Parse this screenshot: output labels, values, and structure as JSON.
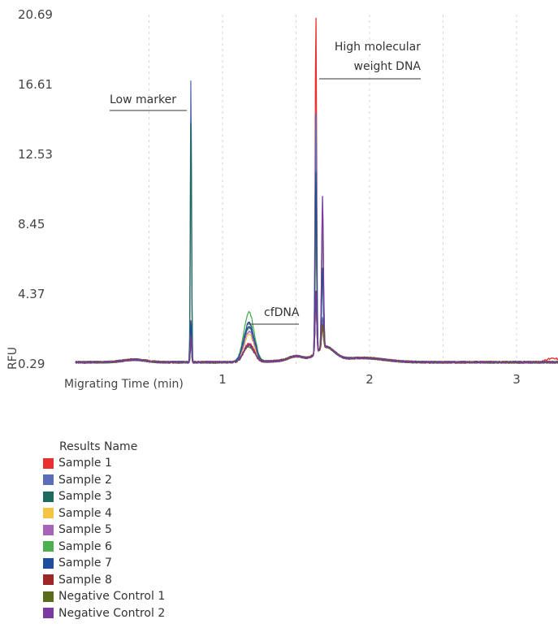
{
  "chart_data": {
    "type": "line",
    "title": "",
    "xlabel": "Migrating Time (min)",
    "ylabel": "RFU",
    "yticks": [
      "0.29",
      "4.37",
      "8.45",
      "12.53",
      "16.61",
      "20.69"
    ],
    "ylim": [
      0.29,
      20.69
    ],
    "xticks": [
      "1",
      "2",
      "3"
    ],
    "xlim": [
      0,
      3.3
    ],
    "grid": "vertical dashed",
    "annotations": {
      "low_marker": "Low marker",
      "cfdna": "cfDNA",
      "hmw_line1": "High molecular",
      "hmw_line2": "weight DNA"
    },
    "legend": {
      "title": "Results Name",
      "placement": "bottom-left"
    },
    "series": [
      {
        "name": "Sample 1",
        "color": "#e8312f",
        "low_peak": 2.9,
        "cf_peak": 1.5,
        "hmw_peak": 20.3,
        "hmw2": 1.6,
        "seed": 1
      },
      {
        "name": "Sample 2",
        "color": "#5b6db8",
        "low_peak": 17.4,
        "cf_peak": 2.4,
        "hmw_peak": 14.6,
        "hmw2": 2.2,
        "seed": 2
      },
      {
        "name": "Sample 3",
        "color": "#1d6b5e",
        "low_peak": 14.8,
        "cf_peak": 2.5,
        "hmw_peak": 10.5,
        "hmw2": 4.9,
        "seed": 3
      },
      {
        "name": "Sample 4",
        "color": "#f4c542",
        "low_peak": 2.6,
        "cf_peak": 2.0,
        "hmw_peak": 8.1,
        "hmw2": 8.3,
        "seed": 4
      },
      {
        "name": "Sample 5",
        "color": "#a763b8",
        "low_peak": 2.8,
        "cf_peak": 2.2,
        "hmw_peak": 9.6,
        "hmw2": 7.5,
        "seed": 5
      },
      {
        "name": "Sample 6",
        "color": "#4db050",
        "low_peak": 2.2,
        "cf_peak": 3.3,
        "hmw_peak": 9.8,
        "hmw2": 8.4,
        "seed": 6
      },
      {
        "name": "Sample 7",
        "color": "#1c4e9c",
        "low_peak": 2.9,
        "cf_peak": 2.7,
        "hmw_peak": 11.2,
        "hmw2": 5.0,
        "seed": 7
      },
      {
        "name": "Sample 8",
        "color": "#9e2626",
        "low_peak": 2.0,
        "cf_peak": 1.4,
        "hmw_peak": 4.1,
        "hmw2": 1.8,
        "seed": 8
      },
      {
        "name": "Negative Control 1",
        "color": "#5a6b1e",
        "low_peak": 1.9,
        "cf_peak": 1.3,
        "hmw_peak": 3.9,
        "hmw2": 1.7,
        "seed": 9
      },
      {
        "name": "Negative Control 2",
        "color": "#7a3aa0",
        "low_peak": 2.0,
        "cf_peak": 1.4,
        "hmw_peak": 4.0,
        "hmw2": 9.2,
        "seed": 10
      }
    ]
  }
}
